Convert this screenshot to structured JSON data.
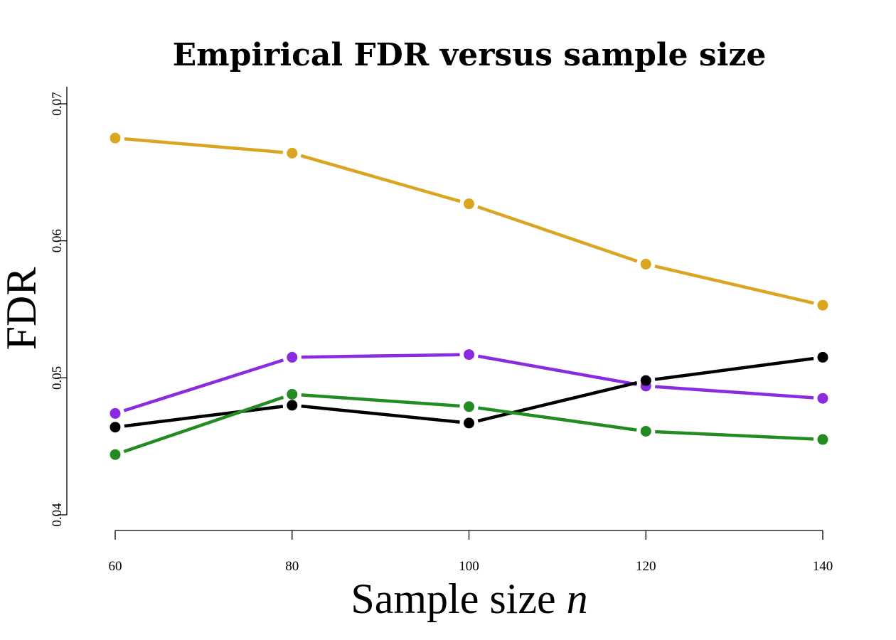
{
  "chart_data": {
    "type": "line",
    "title": "Empirical FDR versus sample size",
    "xlabel_text": "Sample size ",
    "xlabel_var": "n",
    "ylabel": "FDR",
    "x": [
      60,
      80,
      100,
      120,
      140
    ],
    "xlim": [
      60,
      140
    ],
    "ylim": [
      0.04,
      0.07
    ],
    "xticks": [
      "60",
      "80",
      "100",
      "120",
      "140"
    ],
    "yticks": [
      "0.04",
      "0.05",
      "0.06",
      "0.07"
    ],
    "ytick_values": [
      0.04,
      0.05,
      0.06,
      0.07
    ],
    "grid": false,
    "legend": "none",
    "series": [
      {
        "color": "#DAA520",
        "values": [
          0.0675,
          0.0664,
          0.0627,
          0.0583,
          0.0553
        ]
      },
      {
        "color": "#8A2BE2",
        "values": [
          0.0474,
          0.0515,
          0.0517,
          0.0494,
          0.0485
        ]
      },
      {
        "color": "#000000",
        "values": [
          0.0464,
          0.048,
          0.0467,
          0.0498,
          0.0515
        ]
      },
      {
        "color": "#228B22",
        "values": [
          0.0444,
          0.0488,
          0.0479,
          0.0461,
          0.0455
        ]
      }
    ]
  }
}
